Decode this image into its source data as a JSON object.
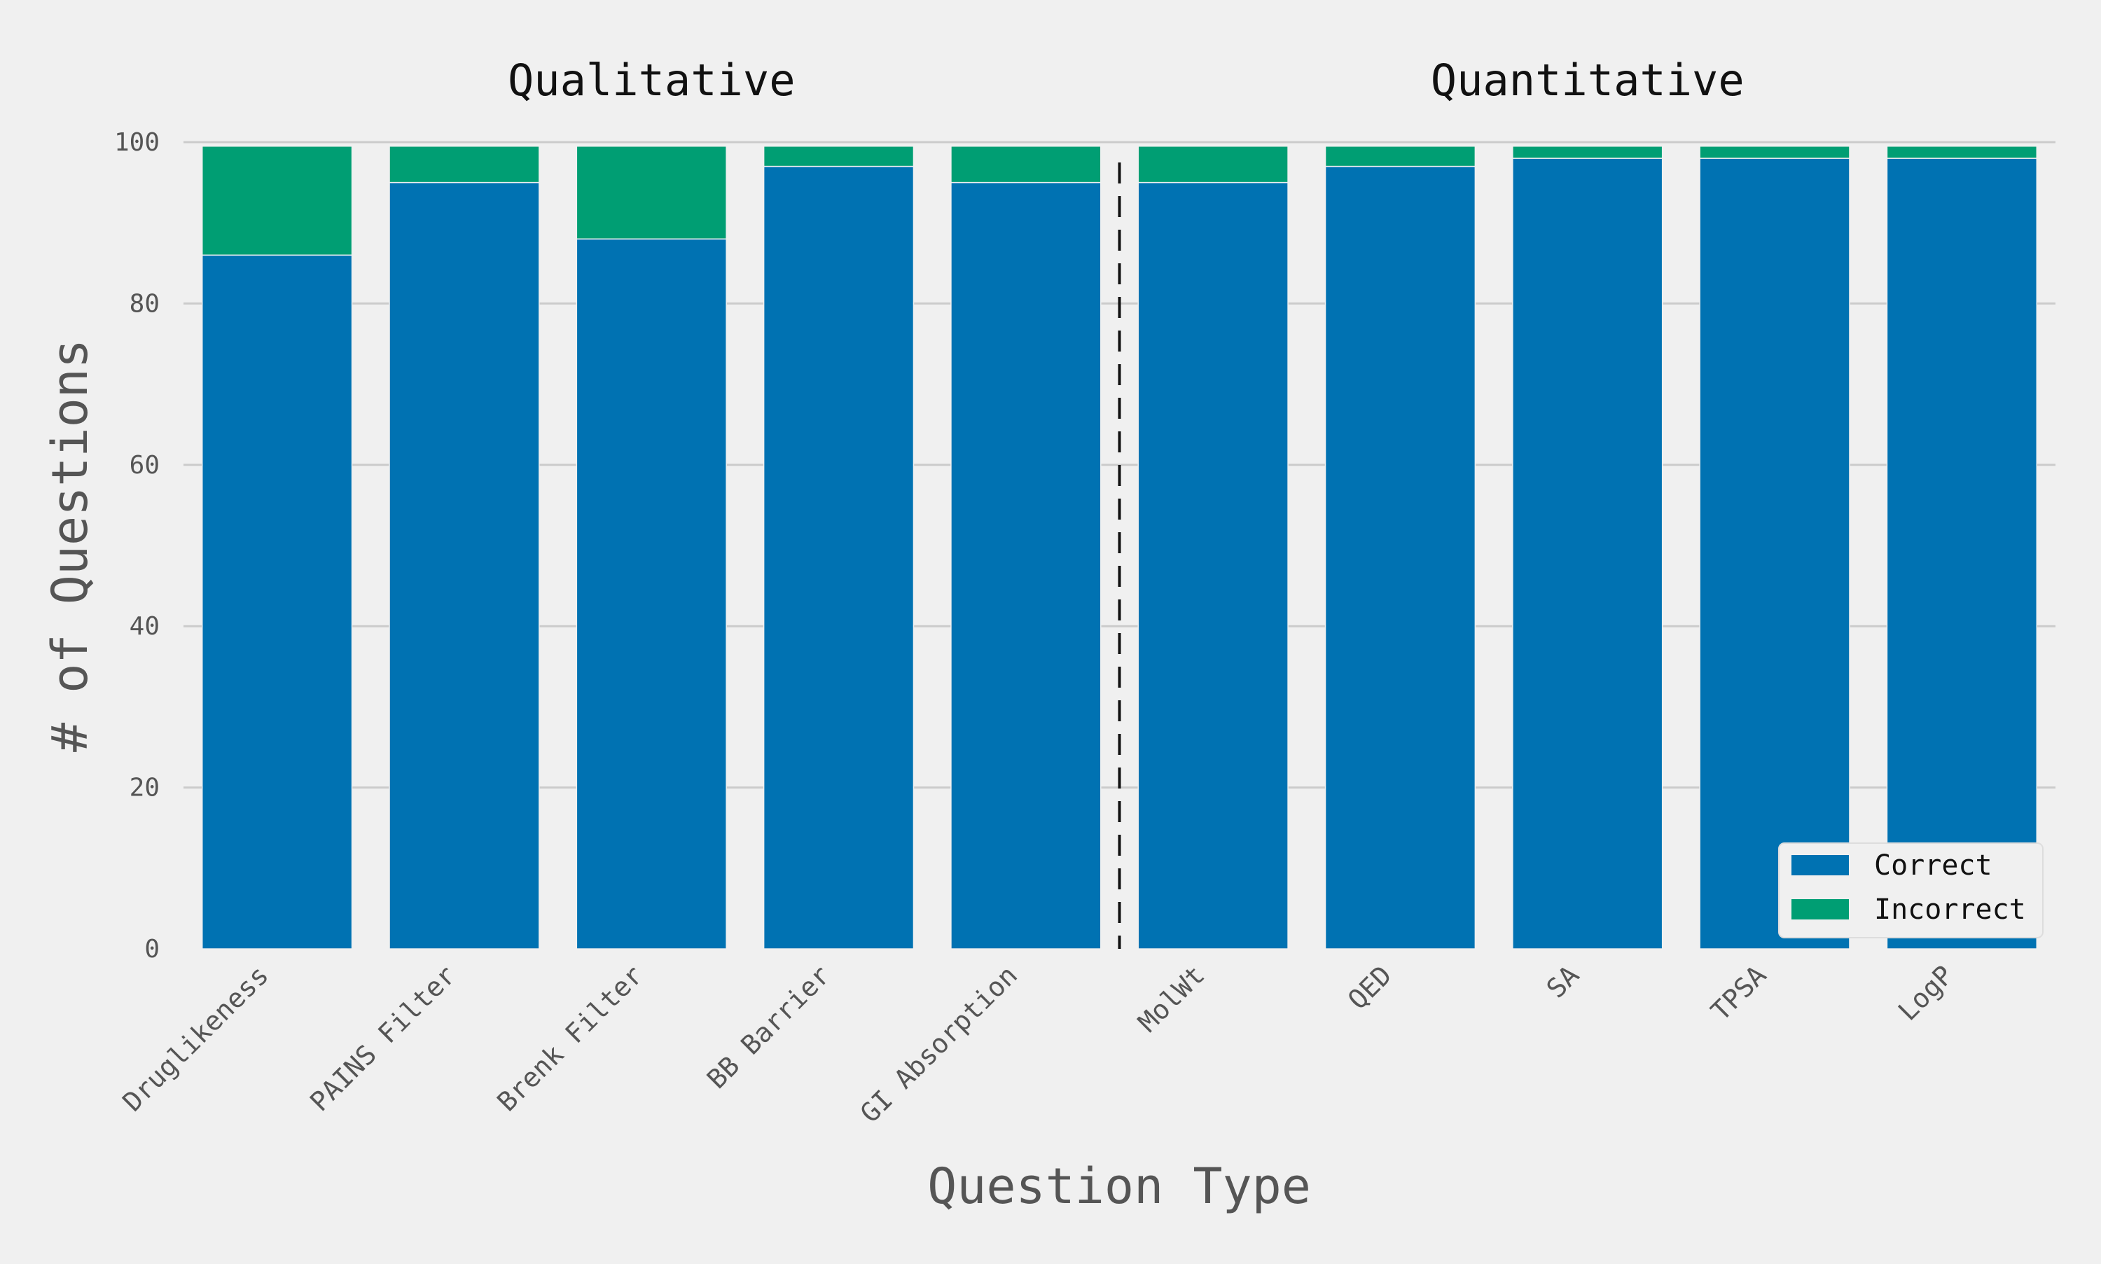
{
  "chart_data": {
    "type": "bar",
    "stacked": true,
    "categories": [
      "Druglikeness",
      "PAINS Filter",
      "Brenk Filter",
      "BB Barrier",
      "GI Absorption",
      "MolWt",
      "QED",
      "SA",
      "TPSA",
      "LogP"
    ],
    "groups": [
      {
        "label": "Qualitative",
        "categories": [
          "Druglikeness",
          "PAINS Filter",
          "Brenk Filter",
          "BB Barrier",
          "GI Absorption"
        ]
      },
      {
        "label": "Quantitative",
        "categories": [
          "MolWt",
          "QED",
          "SA",
          "TPSA",
          "LogP"
        ]
      }
    ],
    "series": [
      {
        "name": "Correct",
        "color": "#0072b2",
        "values": [
          86,
          95,
          88,
          97,
          95,
          95,
          97,
          98,
          98,
          98
        ]
      },
      {
        "name": "Incorrect",
        "color": "#009e73",
        "values": [
          13.5,
          4.5,
          11.5,
          2.5,
          4.5,
          4.5,
          2.5,
          1.5,
          1.5,
          1.5
        ]
      }
    ],
    "xlabel": "Question Type",
    "ylabel": "# of Questions",
    "ylim": [
      0,
      100
    ],
    "yticks": [
      0,
      20,
      40,
      60,
      80,
      100
    ],
    "grid": true,
    "legend_position": "bottom-right",
    "divider": "dashed vertical line between GI Absorption and MolWt"
  }
}
